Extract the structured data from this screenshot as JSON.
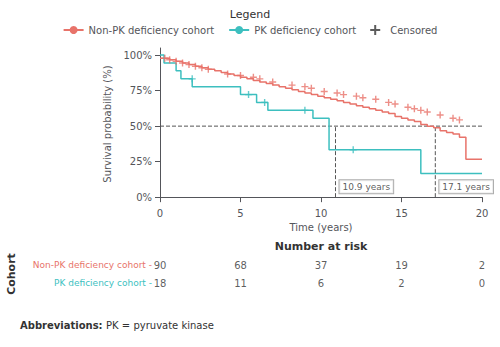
{
  "chart_data": {
    "type": "step",
    "legend_title": "Legend",
    "legend": "top",
    "grid": false,
    "xlabel": "Time (years)",
    "ylabel": "Survival probability (%)",
    "xlim": [
      0,
      20
    ],
    "ylim": [
      -0.02,
      1.05
    ],
    "xticks": [
      0,
      5,
      10,
      15,
      20
    ],
    "yticks": [
      {
        "value": 0,
        "label": "0%"
      },
      {
        "value": 0.25,
        "label": "25%"
      },
      {
        "value": 0.5,
        "label": "50%"
      },
      {
        "value": 0.75,
        "label": "75%"
      },
      {
        "value": 1.0,
        "label": "100%"
      }
    ],
    "series": [
      {
        "name": "Non-PK deficiency cohort",
        "color": "#E8736A",
        "type": "step",
        "x": [
          0,
          0.3,
          0.6,
          1.0,
          1.4,
          1.8,
          2.2,
          2.6,
          3.0,
          3.4,
          3.8,
          4.2,
          4.6,
          5.0,
          5.4,
          5.8,
          6.2,
          6.6,
          7.0,
          7.4,
          7.8,
          8.2,
          8.6,
          9.0,
          9.4,
          9.8,
          10.2,
          10.6,
          11.0,
          11.4,
          11.8,
          12.2,
          12.6,
          13.0,
          13.4,
          13.8,
          14.2,
          14.6,
          15.0,
          15.4,
          15.8,
          16.2,
          16.6,
          17.0,
          17.4,
          17.8,
          18.2,
          18.6,
          19.0,
          20.0
        ],
        "values": [
          0.978,
          0.978,
          0.967,
          0.956,
          0.944,
          0.933,
          0.922,
          0.911,
          0.9,
          0.889,
          0.878,
          0.867,
          0.856,
          0.844,
          0.833,
          0.822,
          0.811,
          0.8,
          0.789,
          0.778,
          0.767,
          0.756,
          0.744,
          0.733,
          0.722,
          0.711,
          0.7,
          0.689,
          0.678,
          0.667,
          0.656,
          0.644,
          0.633,
          0.622,
          0.611,
          0.6,
          0.589,
          0.567,
          0.556,
          0.544,
          0.533,
          0.511,
          0.5,
          0.489,
          0.467,
          0.456,
          0.444,
          0.422,
          0.267,
          0.267
        ],
        "censored_x": [
          0.3,
          0.6,
          1.0,
          1.4,
          1.8,
          2.2,
          2.6,
          3.0,
          4.2,
          5.0,
          5.8,
          6.2,
          7.0,
          8.2,
          9.0,
          9.4,
          10.2,
          11.0,
          11.4,
          12.2,
          12.6,
          13.4,
          14.2,
          14.6,
          15.4,
          15.8,
          16.2,
          16.6,
          17.4,
          18.2,
          18.6
        ],
        "censored_values": [
          0.978,
          0.967,
          0.956,
          0.944,
          0.933,
          0.922,
          0.911,
          0.9,
          0.867,
          0.856,
          0.844,
          0.833,
          0.811,
          0.789,
          0.778,
          0.767,
          0.744,
          0.733,
          0.722,
          0.711,
          0.7,
          0.689,
          0.667,
          0.656,
          0.633,
          0.622,
          0.611,
          0.6,
          0.578,
          0.556,
          0.544
        ]
      },
      {
        "name": "PK deficiency cohort",
        "color": "#3DBFBF",
        "type": "step",
        "x": [
          0,
          0.25,
          1.0,
          1.3,
          2.0,
          5.0,
          6.0,
          6.7,
          9.5,
          10.5,
          12.0,
          15.5,
          16.2,
          20.0
        ],
        "values": [
          1.0,
          0.944,
          0.889,
          0.833,
          0.778,
          0.722,
          0.667,
          0.611,
          0.556,
          0.333,
          0.333,
          0.333,
          0.167,
          0.167
        ],
        "censored_x": [
          2.0,
          5.5,
          6.5,
          9.0,
          12.0
        ],
        "censored_values": [
          0.833,
          0.722,
          0.667,
          0.611,
          0.333
        ]
      }
    ],
    "censored": {
      "label": "Censored",
      "color": "#333333",
      "marker": "plus"
    },
    "median_lines": {
      "y": 0.5,
      "color": "#555555",
      "line_style": "dashed",
      "marks": [
        {
          "x": 10.9,
          "y": [
            0,
            0.5
          ],
          "label": "10.9 years"
        },
        {
          "x": 17.1,
          "y": [
            0,
            0.5
          ],
          "label": "17.1 years"
        }
      ]
    },
    "risk_table": {
      "title": "Number at risk",
      "row_title": "Cohort",
      "times": [
        0,
        5,
        10,
        15,
        20
      ],
      "rows": [
        {
          "label": "Non-PK deficiency cohort -",
          "color": "#E8736A",
          "values": [
            90,
            68,
            37,
            19,
            2
          ]
        },
        {
          "label": "PK deficiency cohort -",
          "color": "#3DBFBF",
          "values": [
            18,
            11,
            6,
            2,
            0
          ]
        }
      ]
    },
    "abbreviations": {
      "label": "Abbreviations: ",
      "text": "PK = pyruvate kinase"
    }
  }
}
